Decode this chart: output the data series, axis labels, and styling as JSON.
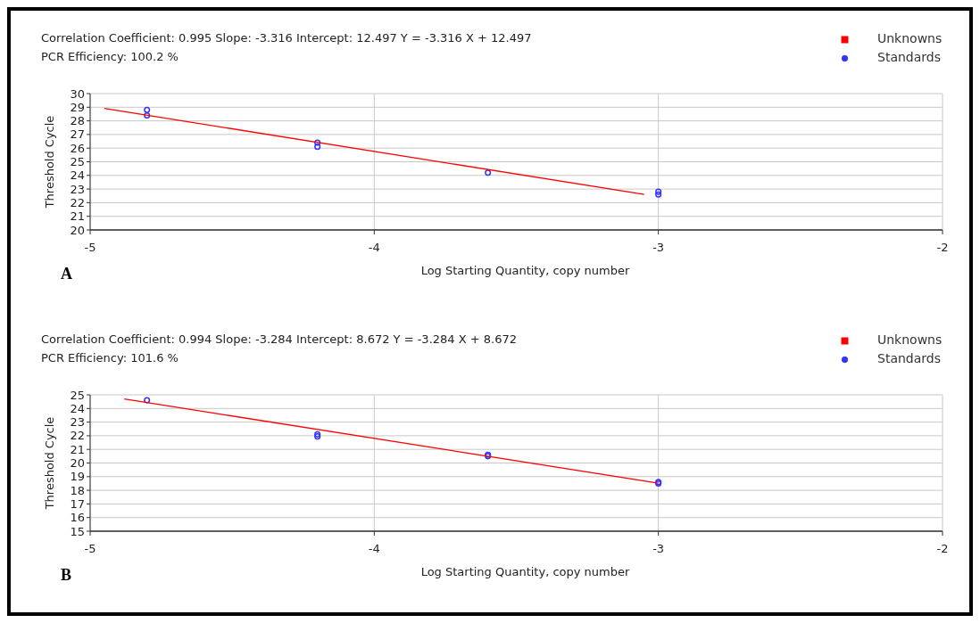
{
  "chart_data": [
    {
      "type": "scatter",
      "xlabel": "Log Starting Quantity, copy number",
      "ylabel": "Threshold Cycle",
      "annotations": [
        "Correlation Coefficient: 0.995   Slope: -3.316   Intercept: 12.497   Y = -3.316 X + 12.497",
        "PCR Efficiency: 100.2 %",
        "A"
      ],
      "xlim": [
        -5,
        -2
      ],
      "xticks": [
        -5,
        -4,
        -3,
        -2
      ],
      "ylim": [
        20,
        30
      ],
      "yticks": [
        20,
        21,
        22,
        23,
        24,
        25,
        26,
        27,
        28,
        29,
        30
      ],
      "grid": true,
      "legend": "top right",
      "series": [
        {
          "name": "Unknowns",
          "type": "scatter",
          "marker": "square",
          "color": "#ff0000"
        },
        {
          "name": "Standards",
          "marker": "circle",
          "color": "#3333ff",
          "x": [
            -4.8,
            -4.8,
            -4.2,
            -4.2,
            -3.6,
            -3,
            -3
          ],
          "values": [
            28.8,
            28.4,
            26.4,
            26.1,
            24.2,
            22.8,
            22.6
          ]
        },
        {
          "type": "line",
          "color": "#ff0000",
          "x": [
            -4.95,
            -3.05
          ],
          "values": [
            28.91,
            22.61
          ]
        }
      ]
    },
    {
      "type": "scatter",
      "xlabel": "Log Starting Quantity, copy number",
      "ylabel": "Threshold Cycle",
      "annotations": [
        "Correlation Coefficient: 0.994   Slope: -3.284   Intercept: 8.672   Y = -3.284 X + 8.672",
        "PCR Efficiency: 101.6 %",
        "B"
      ],
      "xlim": [
        -5,
        -2
      ],
      "xticks": [
        -5,
        -4,
        -3,
        -2
      ],
      "ylim": [
        15,
        25
      ],
      "yticks": [
        15,
        16,
        17,
        18,
        19,
        20,
        21,
        22,
        23,
        24,
        25
      ],
      "grid": true,
      "legend": "top right",
      "series": [
        {
          "name": "Unknowns",
          "type": "scatter",
          "marker": "square",
          "color": "#ff0000"
        },
        {
          "name": "Standards",
          "marker": "circle",
          "color": "#3333ff",
          "x": [
            -4.8,
            -4.2,
            -4.2,
            -3.6,
            -3.6,
            -3,
            -3
          ],
          "values": [
            24.6,
            22.1,
            21.95,
            20.6,
            20.5,
            18.6,
            18.5
          ]
        },
        {
          "type": "line",
          "color": "#ff0000",
          "x": [
            -4.88,
            -3
          ],
          "values": [
            24.7,
            18.52
          ]
        }
      ]
    }
  ]
}
